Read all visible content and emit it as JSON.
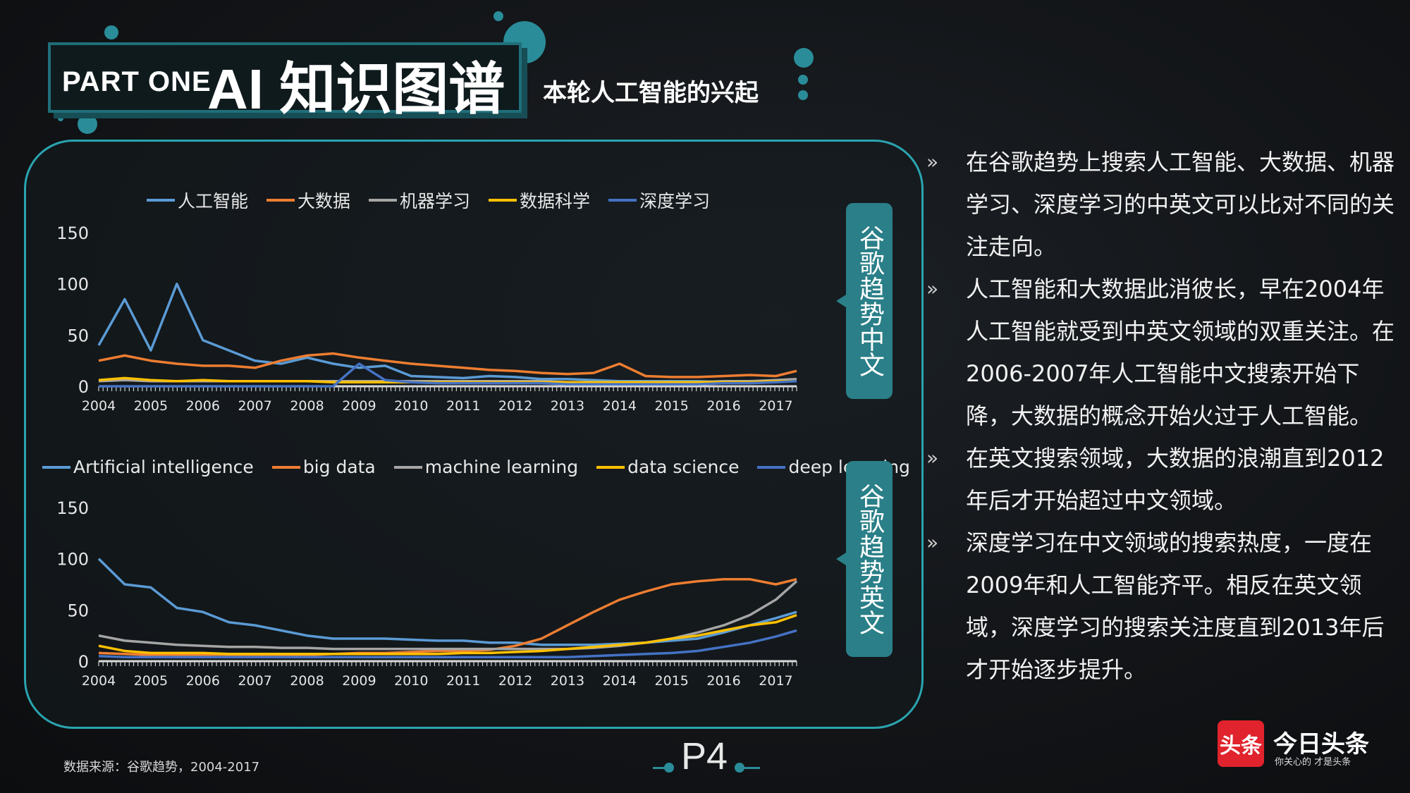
{
  "header": {
    "part": "PART ONE",
    "title": "AI 知识图谱",
    "subtitle": "本轮人工智能的兴起"
  },
  "tags": {
    "chinese": "谷歌趋势中文",
    "english": "谷歌趋势英文"
  },
  "bullets": [
    "在谷歌趋势上搜索人工智能、大数据、机器学习、深度学习的中英文可以比对不同的关注走向。",
    "人工智能和大数据此消彼长，早在2004年人工智能就受到中英文领域的双重关注。在2006-2007年人工智能中文搜索开始下降，大数据的概念开始火过于人工智能。",
    "在英文搜索领域，大数据的浪潮直到2012年后才开始超过中文领域。",
    "深度学习在中文领域的搜索热度，一度在2009年和人工智能齐平。相反在英文领域，深度学习的搜索关注度直到2013年后才开始逐步提升。"
  ],
  "bullet_mark": "»",
  "source": "数据来源：谷歌趋势，2004-2017",
  "page_number": "P4",
  "logo": {
    "icon_text": "头条",
    "name": "今日头条",
    "slogan": "你关心的 才是头条"
  },
  "chart_data": [
    {
      "type": "line",
      "x": [
        2004,
        2004.5,
        2005,
        2005.5,
        2006,
        2006.5,
        2007,
        2007.5,
        2008,
        2008.5,
        2009,
        2009.5,
        2010,
        2010.5,
        2011,
        2011.5,
        2012,
        2012.5,
        2013,
        2013.5,
        2014,
        2014.5,
        2015,
        2015.5,
        2016,
        2016.5,
        2017,
        2017.4
      ],
      "xticks": [
        2004,
        2005,
        2006,
        2007,
        2008,
        2009,
        2010,
        2011,
        2012,
        2013,
        2014,
        2015,
        2016,
        2017
      ],
      "ylim": [
        0,
        150
      ],
      "yticks": [
        0,
        50,
        100,
        150
      ],
      "series": [
        {
          "name": "人工智能",
          "color": "#5b9bd5",
          "values": [
            40,
            85,
            35,
            100,
            45,
            35,
            25,
            22,
            28,
            22,
            18,
            20,
            10,
            9,
            8,
            10,
            9,
            7,
            7,
            6,
            5,
            5,
            5,
            5,
            4,
            5,
            5,
            6
          ]
        },
        {
          "name": "大数据",
          "color": "#ed7d31",
          "values": [
            25,
            30,
            25,
            22,
            20,
            20,
            18,
            25,
            30,
            32,
            28,
            25,
            22,
            20,
            18,
            16,
            15,
            13,
            12,
            13,
            22,
            10,
            9,
            9,
            10,
            11,
            10,
            15
          ]
        },
        {
          "name": "机器学习",
          "color": "#a5a5a5",
          "values": [
            5,
            6,
            5,
            5,
            5,
            5,
            5,
            5,
            5,
            5,
            5,
            5,
            5,
            5,
            5,
            5,
            5,
            5,
            4,
            4,
            4,
            4,
            4,
            4,
            5,
            5,
            6,
            7
          ]
        },
        {
          "name": "数据科学",
          "color": "#ffc000",
          "values": [
            6,
            8,
            6,
            5,
            6,
            5,
            5,
            5,
            5,
            4,
            4,
            4,
            4,
            4,
            4,
            4,
            4,
            4,
            4,
            4,
            4,
            4,
            4,
            4,
            4,
            4,
            5,
            5
          ]
        },
        {
          "name": "深度学习",
          "color": "#4472c4",
          "values": [
            0,
            0,
            0,
            0,
            0,
            0,
            0,
            0,
            0,
            0,
            22,
            6,
            4,
            3,
            3,
            3,
            3,
            3,
            2,
            2,
            2,
            2,
            2,
            2,
            3,
            3,
            4,
            5
          ]
        }
      ]
    },
    {
      "type": "line",
      "x": [
        2004,
        2004.5,
        2005,
        2005.5,
        2006,
        2006.5,
        2007,
        2007.5,
        2008,
        2008.5,
        2009,
        2009.5,
        2010,
        2010.5,
        2011,
        2011.5,
        2012,
        2012.5,
        2013,
        2013.5,
        2014,
        2014.5,
        2015,
        2015.5,
        2016,
        2016.5,
        2017,
        2017.4
      ],
      "xticks": [
        2004,
        2005,
        2006,
        2007,
        2008,
        2009,
        2010,
        2011,
        2012,
        2013,
        2014,
        2015,
        2016,
        2017
      ],
      "ylim": [
        0,
        150
      ],
      "yticks": [
        0,
        50,
        100,
        150
      ],
      "series": [
        {
          "name": "Artificial intelligence",
          "color": "#5b9bd5",
          "values": [
            100,
            75,
            72,
            52,
            48,
            38,
            35,
            30,
            25,
            22,
            22,
            22,
            21,
            20,
            20,
            18,
            18,
            16,
            16,
            16,
            17,
            18,
            20,
            22,
            28,
            35,
            42,
            48
          ]
        },
        {
          "name": "big data",
          "color": "#ed7d31",
          "values": [
            8,
            7,
            6,
            6,
            6,
            5,
            6,
            6,
            6,
            7,
            8,
            8,
            9,
            10,
            10,
            11,
            15,
            22,
            35,
            48,
            60,
            68,
            75,
            78,
            80,
            80,
            75,
            80
          ]
        },
        {
          "name": "machine learning",
          "color": "#a5a5a5",
          "values": [
            25,
            20,
            18,
            16,
            15,
            14,
            14,
            13,
            13,
            12,
            12,
            12,
            12,
            12,
            12,
            12,
            12,
            12,
            12,
            13,
            15,
            18,
            22,
            28,
            35,
            45,
            60,
            78
          ]
        },
        {
          "name": "data science",
          "color": "#ffc000",
          "values": [
            15,
            10,
            8,
            8,
            8,
            7,
            7,
            7,
            7,
            7,
            7,
            7,
            7,
            7,
            8,
            8,
            9,
            10,
            12,
            14,
            16,
            18,
            22,
            25,
            30,
            35,
            38,
            45
          ]
        },
        {
          "name": "deep learning",
          "color": "#4472c4",
          "values": [
            5,
            4,
            4,
            4,
            4,
            4,
            4,
            4,
            4,
            4,
            4,
            4,
            4,
            4,
            4,
            4,
            4,
            4,
            4,
            5,
            6,
            7,
            8,
            10,
            14,
            18,
            24,
            30
          ]
        }
      ]
    }
  ]
}
